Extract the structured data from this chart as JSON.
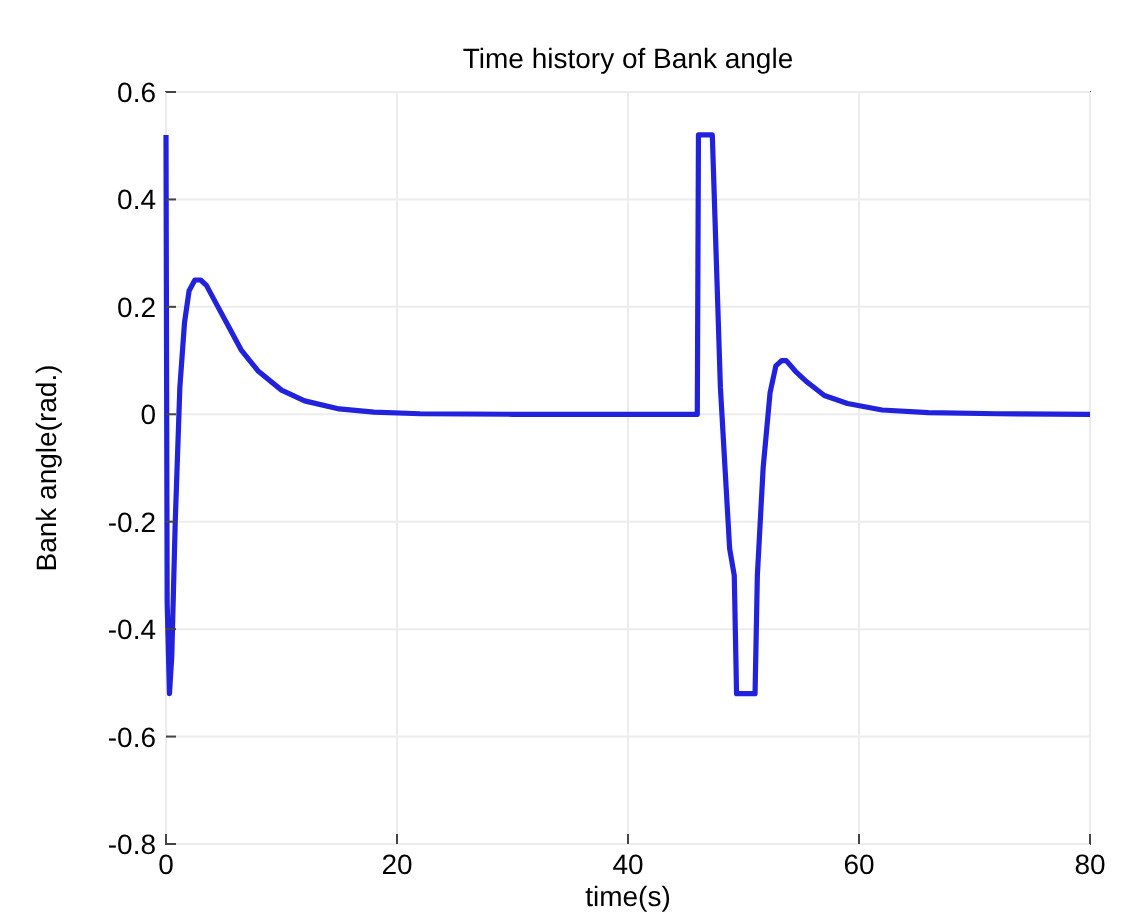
{
  "chart_data": {
    "type": "line",
    "title": "Time history of Bank angle",
    "xlabel": "time(s)",
    "ylabel": "Bank angle(rad.)",
    "xlim": [
      0,
      80
    ],
    "xticks": [
      0,
      20,
      40,
      60,
      80
    ],
    "ylim": [
      -0.8,
      0.6
    ],
    "yticks": [
      -0.8,
      -0.6,
      -0.4,
      -0.2,
      0,
      0.2,
      0.4,
      0.6
    ],
    "grid": true,
    "line_style": "solid",
    "series": [
      {
        "color": "#2222dd",
        "x": [
          0,
          0.1,
          0.3,
          0.5,
          0.8,
          1.2,
          1.6,
          2.0,
          2.5,
          3.0,
          3.5,
          4.5,
          5.5,
          6.5,
          8,
          10,
          12,
          15,
          18,
          22,
          30,
          40,
          46,
          46.1,
          47.3,
          48,
          48.8,
          49.2,
          49.4,
          49.6,
          50,
          51,
          51.2,
          51.7,
          52.3,
          52.8,
          53.3,
          53.7,
          54.5,
          55.5,
          57,
          59,
          62,
          66,
          72,
          80
        ],
        "values": [
          0.52,
          -0.35,
          -0.52,
          -0.45,
          -0.2,
          0.05,
          0.17,
          0.23,
          0.25,
          0.25,
          0.24,
          0.2,
          0.16,
          0.12,
          0.08,
          0.045,
          0.025,
          0.01,
          0.004,
          0.001,
          0,
          0,
          0,
          0.52,
          0.52,
          0.05,
          -0.25,
          -0.3,
          -0.52,
          -0.52,
          -0.52,
          -0.52,
          -0.3,
          -0.1,
          0.04,
          0.09,
          0.1,
          0.1,
          0.08,
          0.06,
          0.035,
          0.02,
          0.008,
          0.003,
          0.001,
          0
        ]
      }
    ]
  }
}
